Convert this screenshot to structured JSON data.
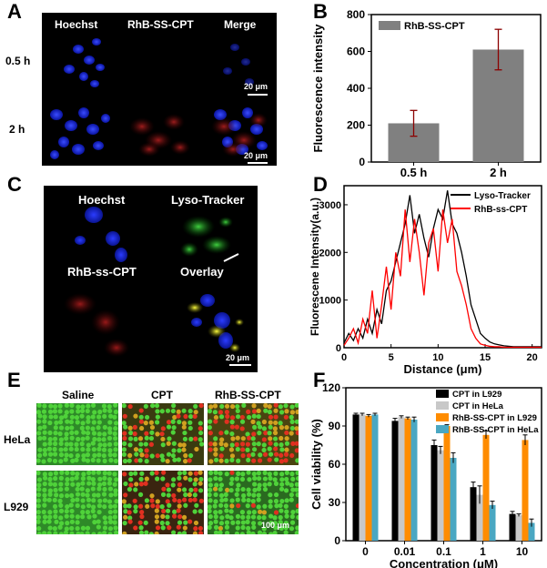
{
  "panels": {
    "a": "A",
    "b": "B",
    "c": "C",
    "d": "D",
    "e": "E",
    "f": "F"
  },
  "panel_a": {
    "cols": [
      "Hoechst",
      "RhB-SS-CPT",
      "Merge"
    ],
    "rows": [
      "0.5 h",
      "2 h"
    ],
    "scale1": "20 μm",
    "scale2": "20 μm"
  },
  "panel_c": {
    "labels": [
      "Hoechst",
      "Lyso-Tracker",
      "RhB-ss-CPT",
      "Overlay"
    ],
    "scale": "20 μm"
  },
  "panel_e": {
    "cols": [
      "Saline",
      "CPT",
      "RhB-SS-CPT"
    ],
    "rows": [
      "HeLa",
      "L929"
    ],
    "scale": "100 μm"
  },
  "chart_data": [
    {
      "type": "bar",
      "categories": [
        "0.5 h",
        "2 h"
      ],
      "series": [
        {
          "name": "RhB-SS-CPT",
          "values": [
            210,
            610
          ],
          "errors": [
            70,
            110
          ],
          "color": "#808080"
        }
      ],
      "xlabel": "",
      "ylabel": "Fluorescence intensity",
      "ylim": [
        0,
        800
      ],
      "yticks": [
        0,
        200,
        400,
        600,
        800
      ],
      "legend": "top-left",
      "error_color": "#8b0000"
    },
    {
      "type": "line",
      "xlabel": "Distance (μm)",
      "ylabel": "Fluorescene Intensity(a.u.)",
      "xlim": [
        0,
        21
      ],
      "ylim": [
        0,
        3400
      ],
      "xticks": [
        0,
        5,
        10,
        15,
        20
      ],
      "yticks": [
        0,
        1000,
        2000,
        3000
      ],
      "legend": "top-right",
      "series": [
        {
          "name": "Lyso-Tracker",
          "color": "#000000",
          "x": [
            0,
            0.5,
            1,
            1.5,
            2,
            2.5,
            3,
            3.5,
            4,
            4.5,
            5,
            5.5,
            6,
            6.5,
            7,
            7.5,
            8,
            8.5,
            9,
            9.5,
            10,
            10.5,
            11,
            11.5,
            12,
            12.5,
            13,
            13.5,
            14,
            14.5,
            15,
            15.5,
            16,
            16.5,
            17,
            17.5,
            18,
            18.5,
            19,
            19.5,
            20,
            20.5,
            21
          ],
          "y": [
            100,
            300,
            150,
            400,
            200,
            600,
            300,
            800,
            500,
            1200,
            1400,
            1800,
            2200,
            2600,
            3200,
            2400,
            2800,
            2300,
            1900,
            2500,
            2900,
            2700,
            3300,
            2600,
            2400,
            2000,
            1500,
            900,
            600,
            300,
            200,
            120,
            80,
            60,
            40,
            30,
            20,
            20,
            20,
            20,
            20,
            20,
            20
          ]
        },
        {
          "name": "RhB-ss-CPT",
          "color": "#ff0000",
          "x": [
            0,
            0.5,
            1,
            1.5,
            2,
            2.5,
            3,
            3.5,
            4,
            4.5,
            5,
            5.5,
            6,
            6.5,
            7,
            7.5,
            8,
            8.5,
            9,
            9.5,
            10,
            10.5,
            11,
            11.5,
            12,
            12.5,
            13,
            13.5,
            14,
            14.5,
            15,
            15.5,
            16,
            16.5,
            17,
            17.5,
            18,
            18.5,
            19,
            19.5,
            20,
            20.5,
            21
          ],
          "y": [
            50,
            200,
            400,
            100,
            600,
            300,
            1200,
            200,
            900,
            1700,
            800,
            2000,
            1500,
            2900,
            1800,
            2700,
            2000,
            1100,
            2200,
            2500,
            1600,
            2900,
            2200,
            2700,
            1600,
            1300,
            900,
            400,
            200,
            80,
            50,
            30,
            20,
            20,
            10,
            10,
            10,
            10,
            10,
            10,
            10,
            10,
            10
          ]
        }
      ]
    },
    {
      "type": "bar",
      "categories": [
        "0",
        "0.01",
        "0.1",
        "1",
        "10"
      ],
      "xlabel": "Concentration (μM)",
      "ylabel": "Cell viability (%)",
      "ylim": [
        0,
        120
      ],
      "yticks": [
        0,
        30,
        60,
        90,
        120
      ],
      "legend": "top-right",
      "series": [
        {
          "name": "CPT in L929",
          "color": "#000000",
          "values": [
            99,
            94,
            75,
            42,
            21
          ],
          "errors": [
            1,
            2,
            4,
            4,
            2
          ]
        },
        {
          "name": "CPT in HeLa",
          "color": "#c8c8c8",
          "values": [
            99,
            97,
            71,
            36,
            20
          ],
          "errors": [
            1,
            1,
            3,
            7,
            1
          ]
        },
        {
          "name": "RhB-SS-CPT in L929",
          "color": "#ff8c00",
          "values": [
            98,
            96,
            90,
            83,
            79
          ],
          "errors": [
            1,
            1,
            1,
            3,
            4
          ]
        },
        {
          "name": "RhB-SS-CPT in HeLa",
          "color": "#4aa7c2",
          "values": [
            99,
            95,
            65,
            28,
            14
          ],
          "errors": [
            1,
            2,
            4,
            3,
            3
          ]
        }
      ]
    }
  ]
}
